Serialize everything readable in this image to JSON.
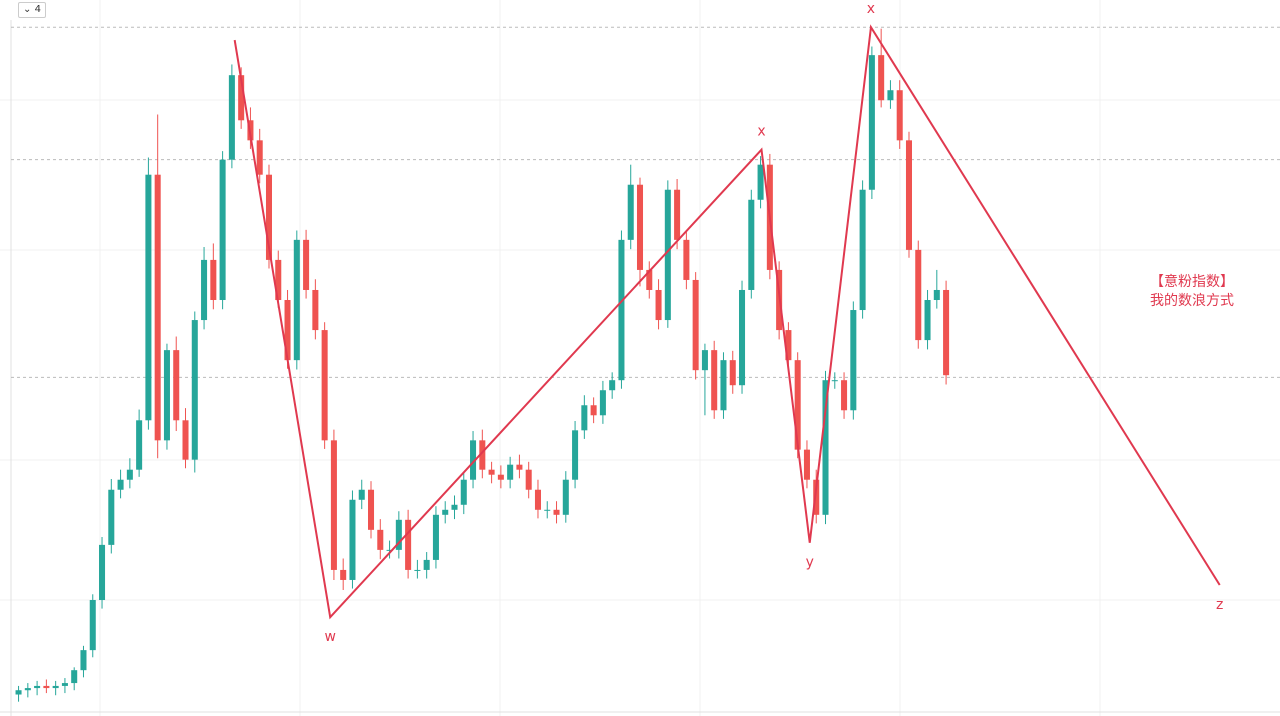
{
  "toolbar": {
    "interval": "4"
  },
  "chart_data": {
    "type": "candlestick",
    "up_color": "#26a69a",
    "down_color": "#ef5350",
    "xlim": [
      -2,
      136
    ],
    "ylim": [
      0,
      100
    ],
    "hlines": [
      96.2,
      77.7,
      47.3
    ],
    "open": [
      3.0,
      3.6,
      3.9,
      4.2,
      3.9,
      4.2,
      4.6,
      6.4,
      9.2,
      16.2,
      23.9,
      31.6,
      33.0,
      34.4,
      41.3,
      75.6,
      38.5,
      51.1,
      41.3,
      35.8,
      55.3,
      63.7,
      58.1,
      77.7,
      89.5,
      83.2,
      80.4,
      75.6,
      63.7,
      58.1,
      49.7,
      66.5,
      59.5,
      53.9,
      38.5,
      20.4,
      19.0,
      30.2,
      31.6,
      26.0,
      23.2,
      23.2,
      27.4,
      20.4,
      20.4,
      21.8,
      28.1,
      28.8,
      29.5,
      33.0,
      38.5,
      34.4,
      33.7,
      33.0,
      35.1,
      34.4,
      31.6,
      28.8,
      28.8,
      28.1,
      33.0,
      39.9,
      43.4,
      42.0,
      45.5,
      46.9,
      66.5,
      74.2,
      62.3,
      59.5,
      55.3,
      73.5,
      66.5,
      60.9,
      48.3,
      51.1,
      42.7,
      49.7,
      46.2,
      59.5,
      72.1,
      77.0,
      62.3,
      53.9,
      49.7,
      37.2,
      33.0,
      28.1,
      46.9,
      46.9,
      42.7,
      56.7,
      73.5,
      92.3,
      86.0,
      87.4,
      80.4,
      65.1,
      52.5,
      58.1,
      59.5
    ],
    "high": [
      4.2,
      4.6,
      4.9,
      5.1,
      4.9,
      5.3,
      6.8,
      9.8,
      17.0,
      25.0,
      33.1,
      34.4,
      36.0,
      42.8,
      78.0,
      84.0,
      52.0,
      53.0,
      43.0,
      56.5,
      65.5,
      66.0,
      78.9,
      91.0,
      90.6,
      85.0,
      82.0,
      77.0,
      65.0,
      59.5,
      67.8,
      67.9,
      61.0,
      55.0,
      40.0,
      22.0,
      31.5,
      33.0,
      32.8,
      27.5,
      24.5,
      28.6,
      28.8,
      21.8,
      22.9,
      29.3,
      30.0,
      30.8,
      33.9,
      39.8,
      40.0,
      35.5,
      35.0,
      36.2,
      36.5,
      35.5,
      33.0,
      30.0,
      30.0,
      34.2,
      41.2,
      44.8,
      44.5,
      46.8,
      48.0,
      67.8,
      77.0,
      75.2,
      63.5,
      61.0,
      74.8,
      75.0,
      67.8,
      62.0,
      52.0,
      52.4,
      50.8,
      51.0,
      60.8,
      73.5,
      78.2,
      78.5,
      63.5,
      55.0,
      50.8,
      38.5,
      34.4,
      48.2,
      48.0,
      48.0,
      57.9,
      74.8,
      93.5,
      96.0,
      88.8,
      88.8,
      81.6,
      66.4,
      59.5,
      62.3,
      60.8
    ],
    "low": [
      2.0,
      2.6,
      2.9,
      3.2,
      2.9,
      3.2,
      3.6,
      5.4,
      8.2,
      15.0,
      22.7,
      30.4,
      31.8,
      33.4,
      40.0,
      36.0,
      37.2,
      39.8,
      34.6,
      34.0,
      54.0,
      56.8,
      56.8,
      76.5,
      82.0,
      79.2,
      74.4,
      62.5,
      57.0,
      48.5,
      48.4,
      58.3,
      52.6,
      37.3,
      19.0,
      17.6,
      17.8,
      28.9,
      24.8,
      21.9,
      22.0,
      22.0,
      19.2,
      19.2,
      19.2,
      20.6,
      26.9,
      27.5,
      28.2,
      31.8,
      33.2,
      32.5,
      31.8,
      31.8,
      33.2,
      30.4,
      27.6,
      27.6,
      26.9,
      27.0,
      31.8,
      38.7,
      40.9,
      40.8,
      44.3,
      45.7,
      65.2,
      60.0,
      58.3,
      54.0,
      54.2,
      65.2,
      59.6,
      47.0,
      42.0,
      41.5,
      41.5,
      45.0,
      45.0,
      58.3,
      70.9,
      61.0,
      52.6,
      48.5,
      36.0,
      31.8,
      26.9,
      26.8,
      45.7,
      41.5,
      41.4,
      55.5,
      72.2,
      85.0,
      84.8,
      79.2,
      64.0,
      51.3,
      51.2,
      56.9,
      46.3
    ],
    "close": [
      3.6,
      3.9,
      4.2,
      3.9,
      4.2,
      4.6,
      6.4,
      9.2,
      16.2,
      23.9,
      31.6,
      33.0,
      34.4,
      41.3,
      75.6,
      38.5,
      51.1,
      41.3,
      35.8,
      55.3,
      63.7,
      58.1,
      77.7,
      89.5,
      83.2,
      80.4,
      75.6,
      63.7,
      58.1,
      49.7,
      66.5,
      59.5,
      53.9,
      38.5,
      20.4,
      19.0,
      30.2,
      31.6,
      26.0,
      23.2,
      23.2,
      27.4,
      20.4,
      20.4,
      21.8,
      28.1,
      28.8,
      29.5,
      33.0,
      38.5,
      34.4,
      33.7,
      33.0,
      35.1,
      34.4,
      31.6,
      28.8,
      28.8,
      28.1,
      33.0,
      39.9,
      43.4,
      42.0,
      45.5,
      46.9,
      66.5,
      74.2,
      62.3,
      59.5,
      55.3,
      73.5,
      66.5,
      60.9,
      48.3,
      51.1,
      42.7,
      49.7,
      46.2,
      59.5,
      72.1,
      77.0,
      62.3,
      53.9,
      49.7,
      37.2,
      33.0,
      28.1,
      46.9,
      46.9,
      42.7,
      56.7,
      73.5,
      92.3,
      86.0,
      87.4,
      80.4,
      65.1,
      52.5,
      58.1,
      59.5,
      47.6
    ],
    "wave": {
      "color": "#e0394f",
      "x": [
        23.3,
        33.6,
        80.1,
        85.3,
        91.9,
        129.5
      ],
      "values": [
        94.4,
        13.8,
        79.1,
        24.2,
        96.2,
        18.3
      ],
      "labels": [
        null,
        "w",
        "x",
        "y",
        "x",
        "z"
      ]
    },
    "annotation": {
      "lines": [
        "【意粉指数】",
        "我的数浪方式"
      ],
      "color": "#e0394f"
    }
  }
}
